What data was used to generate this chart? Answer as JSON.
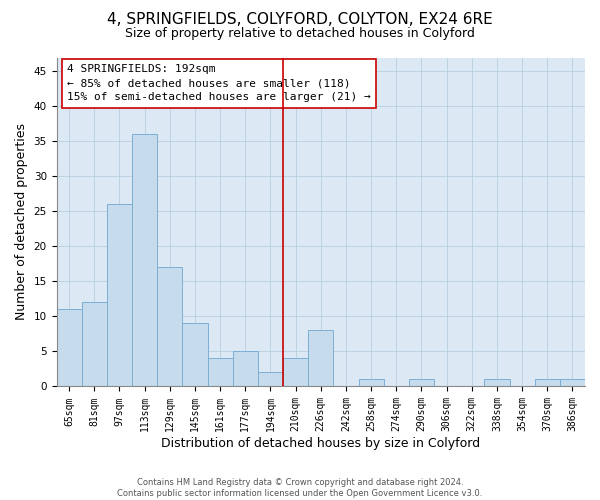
{
  "title": "4, SPRINGFIELDS, COLYFORD, COLYTON, EX24 6RE",
  "subtitle": "Size of property relative to detached houses in Colyford",
  "xlabel": "Distribution of detached houses by size in Colyford",
  "ylabel": "Number of detached properties",
  "footer_line1": "Contains HM Land Registry data © Crown copyright and database right 2024.",
  "footer_line2": "Contains public sector information licensed under the Open Government Licence v3.0.",
  "bin_labels": [
    "65sqm",
    "81sqm",
    "97sqm",
    "113sqm",
    "129sqm",
    "145sqm",
    "161sqm",
    "177sqm",
    "194sqm",
    "210sqm",
    "226sqm",
    "242sqm",
    "258sqm",
    "274sqm",
    "290sqm",
    "306sqm",
    "322sqm",
    "338sqm",
    "354sqm",
    "370sqm",
    "386sqm"
  ],
  "bar_heights": [
    11,
    12,
    26,
    36,
    17,
    9,
    4,
    5,
    2,
    4,
    8,
    0,
    1,
    0,
    1,
    0,
    0,
    1,
    0,
    1,
    1
  ],
  "bar_color": "#c6dcec",
  "bar_edge_color": "#7bafd4",
  "vline_x": 8.5,
  "vline_color": "#cc0000",
  "annotation_line1": "4 SPRINGFIELDS: 192sqm",
  "annotation_line2": "← 85% of detached houses are smaller (118)",
  "annotation_line3": "15% of semi-detached houses are larger (21) →",
  "ylim": [
    0,
    47
  ],
  "yticks": [
    0,
    5,
    10,
    15,
    20,
    25,
    30,
    35,
    40,
    45
  ],
  "background_color": "#ffffff",
  "plot_bg_color": "#dce9f5",
  "grid_color": "#b8cfe0",
  "title_fontsize": 11,
  "subtitle_fontsize": 9,
  "axis_label_fontsize": 9,
  "tick_fontsize": 7,
  "annotation_fontsize": 8
}
